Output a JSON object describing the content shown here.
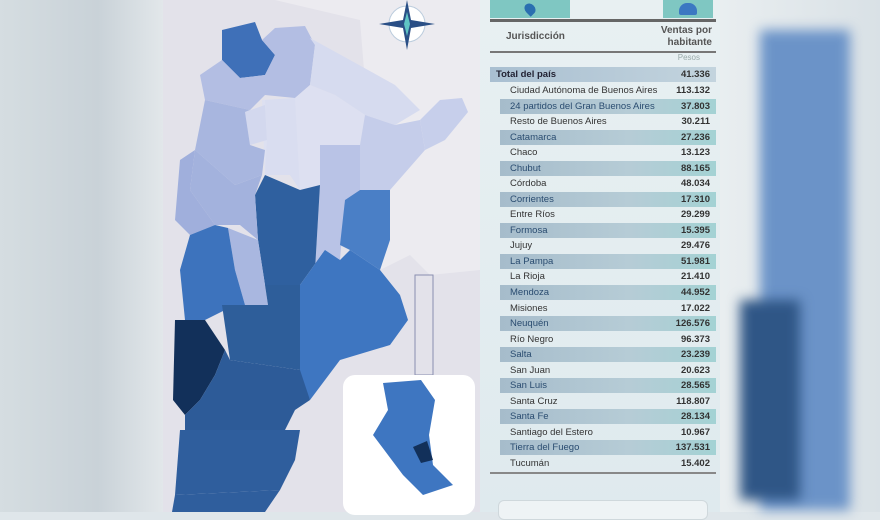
{
  "table": {
    "col_jurisdiccion": "Jurisdicción",
    "col_ventas": "Ventas por habitante",
    "unit": "Pesos",
    "total": {
      "name": "Total del país",
      "value": "41.336"
    },
    "rows": [
      {
        "name": "Ciudad Autónoma de Buenos Aires",
        "value": "113.132"
      },
      {
        "name": "24 partidos del Gran Buenos Aires",
        "value": "37.803"
      },
      {
        "name": "Resto de Buenos Aires",
        "value": "30.211"
      },
      {
        "name": "Catamarca",
        "value": "27.236"
      },
      {
        "name": "Chaco",
        "value": "13.123"
      },
      {
        "name": "Chubut",
        "value": "88.165"
      },
      {
        "name": "Córdoba",
        "value": "48.034"
      },
      {
        "name": "Corrientes",
        "value": "17.310"
      },
      {
        "name": "Entre Ríos",
        "value": "29.299"
      },
      {
        "name": "Formosa",
        "value": "15.395"
      },
      {
        "name": "Jujuy",
        "value": "29.476"
      },
      {
        "name": "La Pampa",
        "value": "51.981"
      },
      {
        "name": "La Rioja",
        "value": "21.410"
      },
      {
        "name": "Mendoza",
        "value": "44.952"
      },
      {
        "name": "Misiones",
        "value": "17.022"
      },
      {
        "name": "Neuquén",
        "value": "126.576"
      },
      {
        "name": "Río Negro",
        "value": "96.373"
      },
      {
        "name": "Salta",
        "value": "23.239"
      },
      {
        "name": "San Juan",
        "value": "20.623"
      },
      {
        "name": "San Luis",
        "value": "28.565"
      },
      {
        "name": "Santa Cruz",
        "value": "118.807"
      },
      {
        "name": "Santa Fe",
        "value": "28.134"
      },
      {
        "name": "Santiago del Estero",
        "value": "10.967"
      },
      {
        "name": "Tierra del Fuego",
        "value": "137.531"
      },
      {
        "name": "Tucumán",
        "value": "15.402"
      }
    ]
  },
  "icons": {
    "left_tab": "map-pin-icon",
    "right_tab": "people-icon",
    "compass": "compass-rose-icon"
  },
  "colors": {
    "accent": "#7fc7c2",
    "darkest": "#12305a",
    "light": "#d8dcef"
  }
}
